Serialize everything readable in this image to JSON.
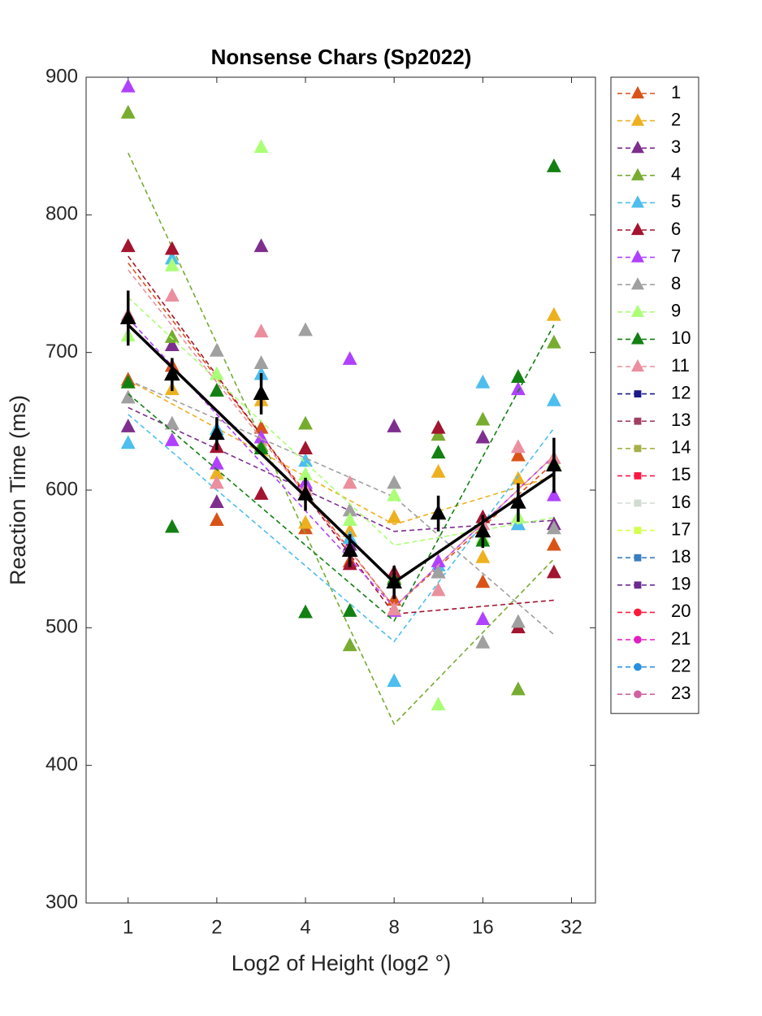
{
  "chart_data": {
    "type": "line",
    "title": "Nonsense Chars (Sp2022)",
    "x_label": "Log2 of Height (log2 °)",
    "y_label": "Reaction Time (ms)",
    "xscale": "log2",
    "xlim": [
      0.72,
      38.6
    ],
    "xticks": [
      1,
      2,
      4,
      8,
      16,
      32
    ],
    "ylim": [
      300,
      900
    ],
    "yticks": [
      300,
      400,
      500,
      600,
      700,
      800,
      900
    ],
    "legend": "outside-right",
    "x": [
      1,
      1.41,
      2,
      2.83,
      4,
      5.66,
      8,
      11.3,
      16,
      21.1,
      27.9
    ],
    "fit_x": [
      1,
      8,
      27.9
    ],
    "series": [
      {
        "name": "1",
        "color": "#d95319",
        "marker": "triangle",
        "values": [
          680,
          690,
          578,
          645,
          572,
          548,
          520,
          640,
          533,
          625,
          560
        ],
        "fit": [
          765,
          515,
          620
        ]
      },
      {
        "name": "2",
        "color": "#edb120",
        "marker": "triangle",
        "values": [
          678,
          673,
          612,
          665,
          576,
          570,
          580,
          613,
          551,
          608,
          727
        ],
        "fit": [
          680,
          575,
          610
        ]
      },
      {
        "name": "3",
        "color": "#7e2f8e",
        "marker": "triangle",
        "values": [
          646,
          705,
          591,
          777,
          603,
          560,
          646,
          540,
          638,
          575,
          575
        ],
        "fit": [
          660,
          570,
          578
        ]
      },
      {
        "name": "4",
        "color": "#77ac30",
        "marker": "triangle",
        "values": [
          874,
          711,
          672,
          632,
          648,
          487,
          536,
          640,
          651,
          455,
          707
        ],
        "fit": [
          845,
          430,
          550
        ]
      },
      {
        "name": "5",
        "color": "#4dbeee",
        "marker": "triangle",
        "values": [
          634,
          768,
          644,
          684,
          621,
          565,
          461,
          545,
          678,
          575,
          665
        ],
        "fit": [
          655,
          490,
          645
        ]
      },
      {
        "name": "6",
        "color": "#a2142f",
        "marker": "triangle",
        "values": [
          777,
          775,
          631,
          597,
          630,
          546,
          540,
          645,
          580,
          500,
          540
        ],
        "fit": [
          770,
          510,
          520
        ]
      },
      {
        "name": "7",
        "color": "#b041ff",
        "marker": "triangle",
        "values": [
          893,
          636,
          619,
          638,
          605,
          695,
          512,
          548,
          506,
          673,
          596
        ],
        "fit": [
          725,
          515,
          625
        ]
      },
      {
        "name": "8",
        "color": "#a0a0a0",
        "marker": "triangle",
        "values": [
          667,
          648,
          701,
          692,
          716,
          585,
          605,
          540,
          489,
          504,
          572
        ],
        "fit": [
          680,
          595,
          495
        ]
      },
      {
        "name": "9",
        "color": "#aaff77",
        "marker": "triangle",
        "values": [
          712,
          763,
          684,
          849,
          611,
          578,
          596,
          444,
          565,
          580,
          620
        ],
        "fit": [
          740,
          560,
          580
        ]
      },
      {
        "name": "10",
        "color": "#138013",
        "marker": "triangle",
        "values": [
          678,
          573,
          672,
          630,
          511,
          512,
          535,
          627,
          563,
          682,
          835
        ],
        "fit": [
          670,
          505,
          720
        ]
      },
      {
        "name": "11",
        "color": "#eb8f9e",
        "marker": "triangle",
        "values": [
          727,
          741,
          605,
          715,
          600,
          605,
          513,
          527,
          575,
          631,
          623
        ],
        "fit": [
          760,
          515,
          625
        ]
      },
      {
        "name": "12",
        "color": "#1a1a8c",
        "marker": "square"
      },
      {
        "name": "13",
        "color": "#a0405f",
        "marker": "square"
      },
      {
        "name": "14",
        "color": "#a6b04a",
        "marker": "square"
      },
      {
        "name": "15",
        "color": "#ff1744",
        "marker": "square"
      },
      {
        "name": "16",
        "color": "#d0dcd0",
        "marker": "square"
      },
      {
        "name": "17",
        "color": "#d4ff4d",
        "marker": "square"
      },
      {
        "name": "18",
        "color": "#3a7ebf",
        "marker": "square"
      },
      {
        "name": "19",
        "color": "#6a2c91",
        "marker": "square"
      },
      {
        "name": "20",
        "color": "#ff1a3c",
        "marker": "circle"
      },
      {
        "name": "21",
        "color": "#e020c0",
        "marker": "circle"
      },
      {
        "name": "22",
        "color": "#2a8fdf",
        "marker": "circle"
      },
      {
        "name": "23",
        "color": "#d060a0",
        "marker": "circle"
      }
    ],
    "mean": {
      "color": "#000000",
      "values": [
        725,
        684,
        641,
        670,
        597,
        556,
        533,
        583,
        570,
        591,
        618
      ],
      "errors": [
        20,
        12,
        12,
        15,
        12,
        12,
        12,
        13,
        12,
        14,
        20
      ],
      "fit": [
        720,
        533,
        612
      ]
    }
  }
}
